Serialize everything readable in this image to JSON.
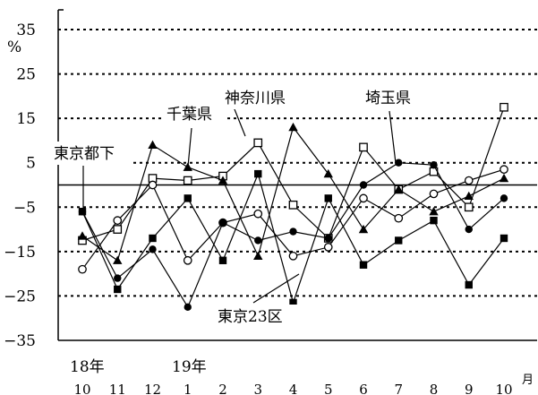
{
  "chart_data": {
    "type": "line",
    "ylabel": "%",
    "xunit": "月",
    "ylim": [
      -35,
      35
    ],
    "yticks": [
      35,
      25,
      15,
      5,
      -5,
      -15,
      -25,
      -35
    ],
    "dashed_gridlines": [
      35,
      25,
      15,
      5,
      -5,
      -15,
      -25
    ],
    "zero_line": 0,
    "categories": [
      "10",
      "11",
      "12",
      "1",
      "2",
      "3",
      "4",
      "5",
      "6",
      "7",
      "8",
      "9",
      "10"
    ],
    "year_labels": [
      {
        "text": "18年",
        "category_index": 0
      },
      {
        "text": "19年",
        "category_index": 3
      }
    ],
    "series": [
      {
        "name": "東京23区",
        "marker": "filled-square",
        "values": [
          -6,
          -23.5,
          -12,
          -3,
          -17,
          2.5,
          -26.5,
          -3,
          -18,
          -12.5,
          -8,
          -22.5,
          -12
        ]
      },
      {
        "name": "東京都下",
        "marker": "open-square",
        "values": [
          -12.5,
          -10,
          1.5,
          1,
          2,
          9.5,
          -4.5,
          -12,
          8.5,
          -1,
          3,
          -5,
          17.5
        ]
      },
      {
        "name": "神奈川県",
        "marker": "open-circle",
        "values": [
          -19,
          -8,
          0,
          -17,
          -8.5,
          -6.5,
          -16,
          -14,
          -3,
          -7.5,
          -2,
          1,
          3.5
        ]
      },
      {
        "name": "埼玉県",
        "marker": "filled-circle",
        "values": [
          -6,
          -21,
          -14.5,
          -27.5,
          -8.5,
          -12.5,
          -10.5,
          -12,
          0,
          5,
          4.5,
          -10,
          -3
        ]
      },
      {
        "name": "千葉県",
        "marker": "filled-triangle",
        "values": [
          -11.5,
          -17,
          9,
          4,
          1,
          -16,
          13,
          2.5,
          -10,
          -1,
          -6,
          -2.5,
          1.5
        ]
      }
    ],
    "annotations": [
      "東京都下",
      "千葉県",
      "神奈川県",
      "埼玉県",
      "東京23区"
    ],
    "legend": "none"
  }
}
